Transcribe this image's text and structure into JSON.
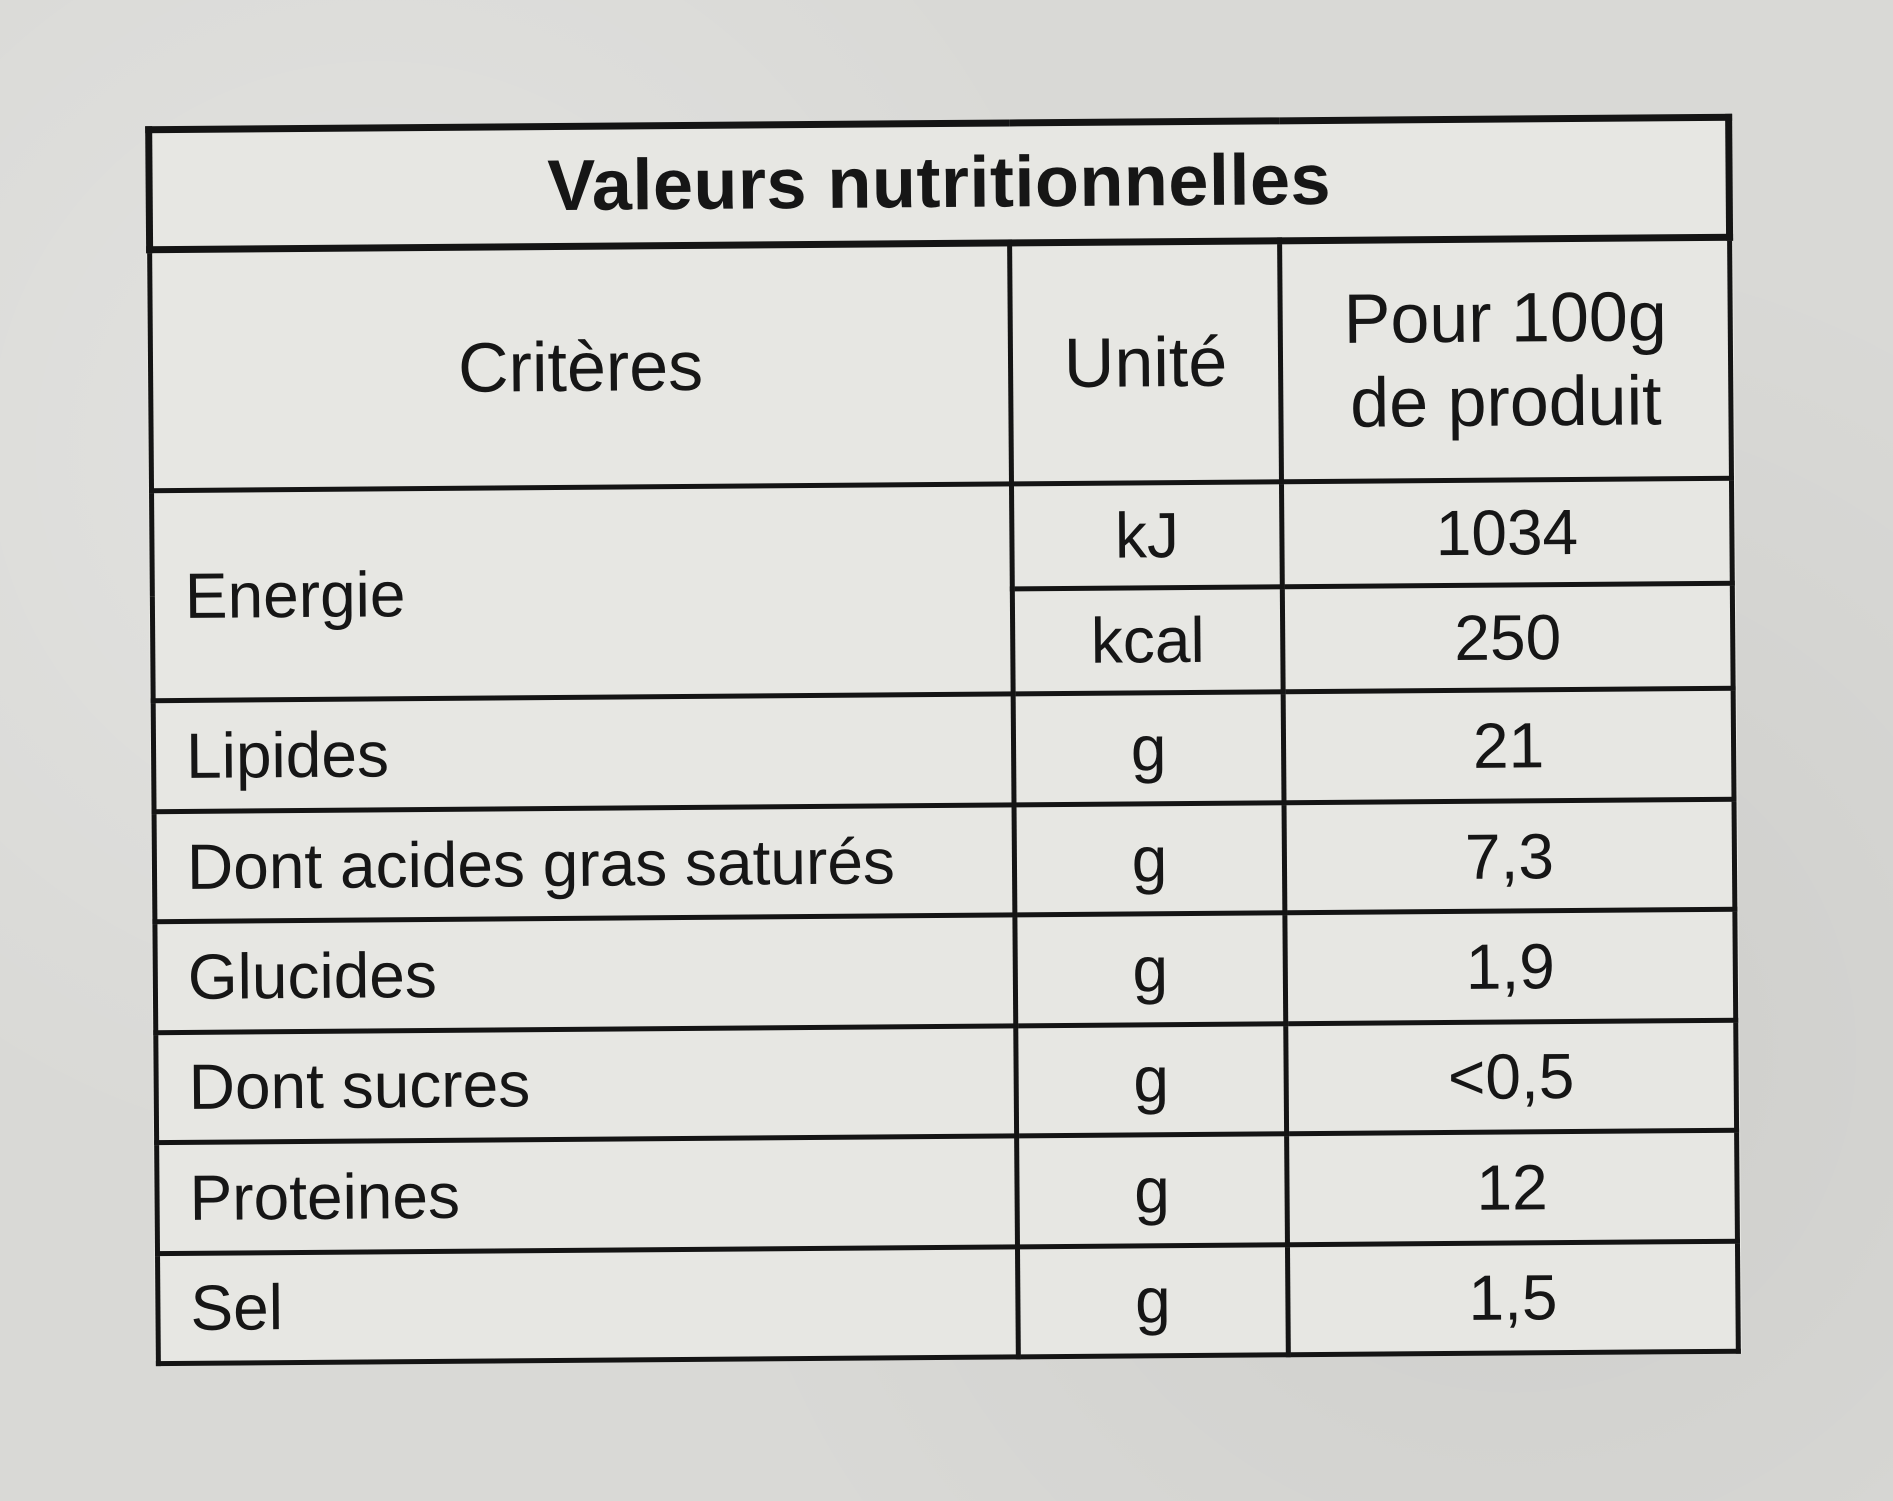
{
  "table": {
    "title": "Valeurs nutritionnelles",
    "headers": {
      "criteria": "Critères",
      "unit": "Unité",
      "per100_line1": "Pour 100g",
      "per100_line2": "de produit"
    },
    "energy": {
      "label": "Energie",
      "kj_unit": "kJ",
      "kj_value": "1034",
      "kcal_unit": "kcal",
      "kcal_value": "250"
    },
    "rows": [
      {
        "criteria": "Lipides",
        "unit": "g",
        "value": "21"
      },
      {
        "criteria": "Dont acides gras saturés",
        "unit": "g",
        "value": "7,3"
      },
      {
        "criteria": "Glucides",
        "unit": "g",
        "value": "1,9"
      },
      {
        "criteria": "Dont sucres",
        "unit": "g",
        "value": "<0,5"
      },
      {
        "criteria": "Proteines",
        "unit": "g",
        "value": "12"
      },
      {
        "criteria": "Sel",
        "unit": "g",
        "value": "1,5"
      }
    ]
  }
}
